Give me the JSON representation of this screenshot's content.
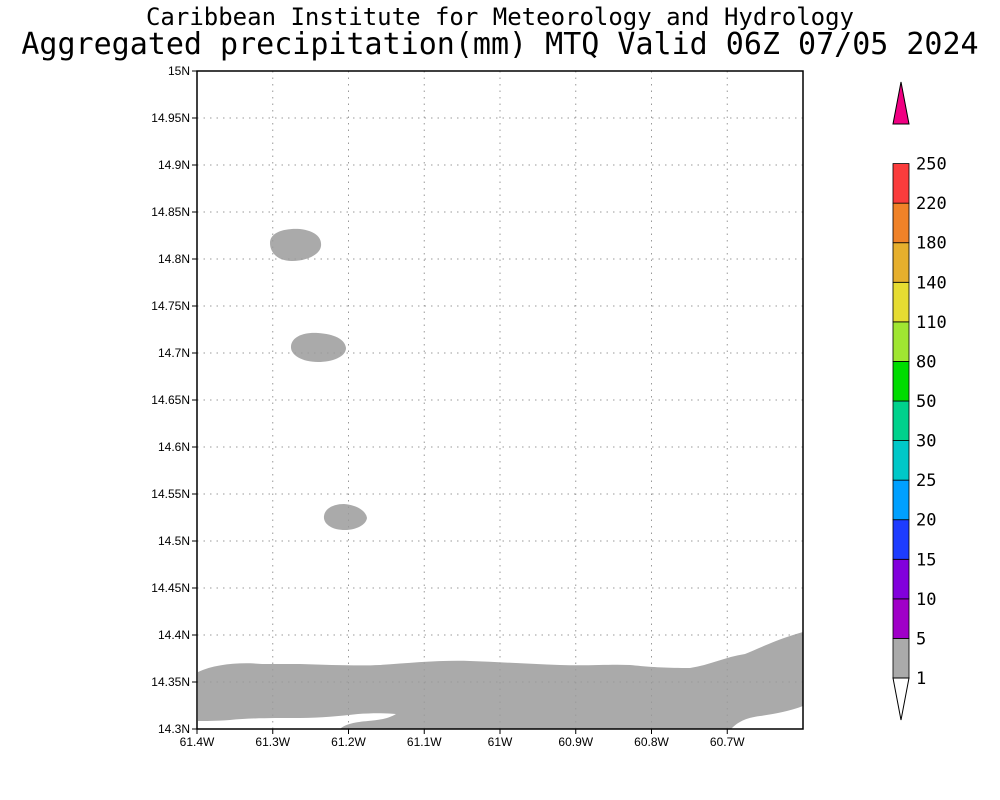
{
  "header": {
    "line1": "Caribbean Institute for Meteorology and Hydrology",
    "line2": "Aggregated precipitation(mm) MTQ Valid 06Z 07/05 2024"
  },
  "map": {
    "lat_ticks": [
      "15N",
      "14.95N",
      "14.9N",
      "14.85N",
      "14.8N",
      "14.75N",
      "14.7N",
      "14.65N",
      "14.6N",
      "14.55N",
      "14.5N",
      "14.45N",
      "14.4N",
      "14.35N",
      "14.3N"
    ],
    "lon_ticks": [
      "61.4W",
      "61.3W",
      "61.2W",
      "61.1W",
      "61W",
      "60.9W",
      "60.8W",
      "60.7W"
    ],
    "lat_range": [
      14.3,
      15.0
    ],
    "lon_range": [
      -61.4,
      -60.6
    ],
    "grid": true,
    "precip_color": "#aaaaaa"
  },
  "colorbar": {
    "labels": [
      "1",
      "5",
      "10",
      "15",
      "20",
      "25",
      "30",
      "50",
      "80",
      "110",
      "140",
      "180",
      "220",
      "250"
    ],
    "colors": [
      "#aaaaaa",
      "#a000c8",
      "#8200dc",
      "#1e3cff",
      "#00a0ff",
      "#00c8c8",
      "#00d28c",
      "#00dc00",
      "#a0e632",
      "#e6dc32",
      "#e6af2d",
      "#f08228",
      "#fa3c3c",
      "#f00082"
    ],
    "lower_color": "#ffffff",
    "upper_color": "#f00082"
  }
}
